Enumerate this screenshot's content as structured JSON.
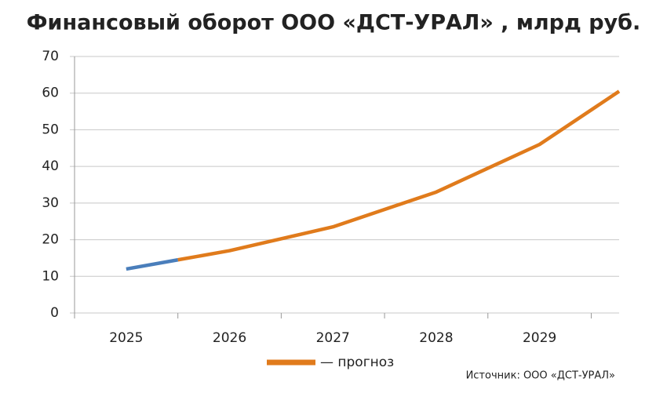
{
  "chart_data": {
    "type": "line",
    "title": "Финансовый оборот ООО «ДСТ-УРАЛ» , млрд руб.",
    "source": "Источник: ООО «ДСТ-УРАЛ»",
    "xlim": [
      2024.5,
      2029.77
    ],
    "xticks": [
      2025,
      2026,
      2027,
      2028,
      2029
    ],
    "ylim": [
      0,
      70
    ],
    "yticks": [
      0,
      10,
      20,
      30,
      40,
      50,
      60,
      70
    ],
    "grid": true,
    "series": [
      {
        "color": "#4a7ebb",
        "x": [
          2025,
          2025.5
        ],
        "values": [
          12,
          14.5
        ]
      },
      {
        "name": "— прогноз",
        "color": "#e07b1c",
        "x": [
          2025.5,
          2026,
          2027,
          2028,
          2029,
          2029.77
        ],
        "values": [
          14.5,
          17,
          23.5,
          33,
          46,
          60.5
        ]
      }
    ]
  }
}
